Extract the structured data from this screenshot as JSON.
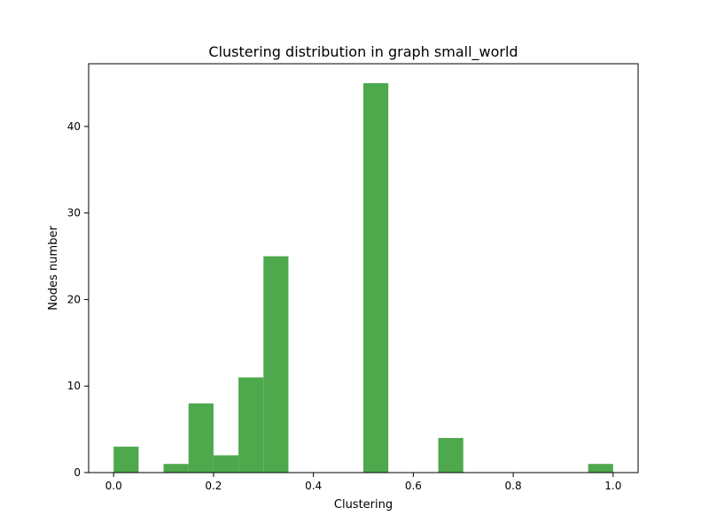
{
  "chart_data": {
    "type": "bar",
    "title": "Clustering distribution in graph small_world",
    "xlabel": "Clustering",
    "ylabel": "Nodes number",
    "xlim": [
      -0.05,
      1.05
    ],
    "ylim": [
      0,
      47.25
    ],
    "x_ticks": [
      0.0,
      0.2,
      0.4,
      0.6,
      0.8,
      1.0
    ],
    "x_tick_labels": [
      "0.0",
      "0.2",
      "0.4",
      "0.6",
      "0.8",
      "1.0"
    ],
    "y_ticks": [
      0,
      10,
      20,
      30,
      40
    ],
    "y_tick_labels": [
      "0",
      "10",
      "20",
      "30",
      "40"
    ],
    "bin_width": 0.05,
    "bins": [
      {
        "start": 0.0,
        "count": 3
      },
      {
        "start": 0.05,
        "count": 0
      },
      {
        "start": 0.1,
        "count": 1
      },
      {
        "start": 0.15,
        "count": 8
      },
      {
        "start": 0.2,
        "count": 2
      },
      {
        "start": 0.25,
        "count": 11
      },
      {
        "start": 0.3,
        "count": 25
      },
      {
        "start": 0.35,
        "count": 0
      },
      {
        "start": 0.4,
        "count": 0
      },
      {
        "start": 0.45,
        "count": 0
      },
      {
        "start": 0.5,
        "count": 45
      },
      {
        "start": 0.55,
        "count": 0
      },
      {
        "start": 0.6,
        "count": 0
      },
      {
        "start": 0.65,
        "count": 4
      },
      {
        "start": 0.7,
        "count": 0
      },
      {
        "start": 0.75,
        "count": 0
      },
      {
        "start": 0.8,
        "count": 0
      },
      {
        "start": 0.85,
        "count": 0
      },
      {
        "start": 0.9,
        "count": 0
      },
      {
        "start": 0.95,
        "count": 1
      }
    ],
    "bar_color": "#4ea84c",
    "grid": false,
    "legend": "none"
  }
}
